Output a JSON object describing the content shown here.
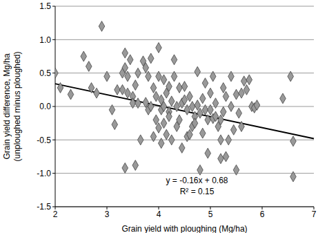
{
  "chart_data": {
    "type": "scatter",
    "x_label": "Grain yield with ploughing (Mg/ha)",
    "y_label": [
      "Grain yield difference, Mg/ha",
      "(unploughed minus ploughed)"
    ],
    "xlim": [
      2,
      7
    ],
    "xticks": [
      2,
      3,
      4,
      5,
      6,
      7
    ],
    "ylim": [
      -1.5,
      1.5
    ],
    "yticks": [
      {
        "value": -1.5,
        "label": "-1.5"
      },
      {
        "value": -1.0,
        "label": "-1.0"
      },
      {
        "value": -0.5,
        "label": "-0.5"
      },
      {
        "value": 0,
        "label": "0.0"
      },
      {
        "value": 0.5,
        "label": "0.5"
      },
      {
        "value": 1.0,
        "label": "1.0"
      },
      {
        "value": 1.5,
        "label": "1.5"
      }
    ],
    "grid": "y",
    "marker": "diamond",
    "color": "#999999",
    "x": [
      2.0,
      2.1,
      2.3,
      2.55,
      2.65,
      2.7,
      2.8,
      2.9,
      3.0,
      3.1,
      3.15,
      3.2,
      3.3,
      3.3,
      3.35,
      3.35,
      3.35,
      3.4,
      3.4,
      3.45,
      3.5,
      3.5,
      3.55,
      3.55,
      3.6,
      3.6,
      3.65,
      3.7,
      3.75,
      3.75,
      3.8,
      3.8,
      3.85,
      3.85,
      3.9,
      3.9,
      3.95,
      3.95,
      4.0,
      4.0,
      4.0,
      4.05,
      4.05,
      4.05,
      4.1,
      4.1,
      4.1,
      4.15,
      4.15,
      4.2,
      4.2,
      4.2,
      4.25,
      4.25,
      4.3,
      4.3,
      4.35,
      4.35,
      4.4,
      4.4,
      4.45,
      4.45,
      4.5,
      4.5,
      4.55,
      4.55,
      4.6,
      4.6,
      4.65,
      4.65,
      4.7,
      4.7,
      4.75,
      4.75,
      4.8,
      4.8,
      4.85,
      4.85,
      4.9,
      4.9,
      4.95,
      4.95,
      5.0,
      5.0,
      5.05,
      5.05,
      5.1,
      5.1,
      5.15,
      5.2,
      5.2,
      5.2,
      5.25,
      5.25,
      5.3,
      5.3,
      5.35,
      5.4,
      5.4,
      5.45,
      5.5,
      5.5,
      5.55,
      5.6,
      5.6,
      5.65,
      5.7,
      5.75,
      5.8,
      5.85,
      5.9,
      6.4,
      6.55,
      6.6,
      6.6
    ],
    "values": [
      0.5,
      0.28,
      0.18,
      0.75,
      0.6,
      0.28,
      0.2,
      1.2,
      0.45,
      -0.05,
      -0.27,
      0.25,
      0.25,
      0.5,
      0.8,
      0.58,
      -0.92,
      0.45,
      0.2,
      0.7,
      0.15,
      0.05,
      -0.88,
      0.32,
      0.5,
      0.05,
      -0.5,
      0.68,
      0.58,
      0.06,
      0.45,
      -0.05,
      0.0,
      0.72,
      -0.45,
      0.28,
      0.15,
      -0.2,
      0.88,
      0.45,
      -0.32,
      -0.05,
      0.1,
      -0.55,
      0.0,
      0.4,
      -0.25,
      -0.42,
      0.2,
      0.3,
      -0.08,
      -0.15,
      0.08,
      -0.5,
      0.7,
      0.45,
      -0.3,
      0.0,
      0.28,
      -0.2,
      -0.62,
      0.05,
      0.3,
      0.1,
      -0.45,
      -0.05,
      -0.42,
      0.15,
      -0.3,
      0.0,
      -0.15,
      -0.25,
      0.52,
      0.02,
      -0.95,
      -0.1,
      0.12,
      -0.4,
      -0.05,
      0.35,
      -0.2,
      -0.7,
      0.2,
      -0.05,
      0.45,
      -0.18,
      -0.15,
      0.05,
      -0.3,
      -0.5,
      -0.2,
      -0.78,
      0.28,
      -0.08,
      0.15,
      -0.75,
      -0.5,
      0.0,
      0.45,
      -0.35,
      0.18,
      -0.95,
      -0.1,
      0.2,
      -0.3,
      0.38,
      0.25,
      0.4,
      0.0,
      -0.02,
      0.02,
      0.12,
      0.45,
      -0.52,
      -1.05
    ],
    "trendline": {
      "x": [
        2,
        7
      ],
      "y": [
        0.34,
        -0.48
      ],
      "color": "#000000"
    },
    "annotations": [
      {
        "text": "y = -0.16x + 0.68",
        "x": 4.74,
        "y": -1.1
      },
      {
        "text": "R² = 0.15",
        "x": 4.74,
        "y": -1.27
      }
    ]
  }
}
